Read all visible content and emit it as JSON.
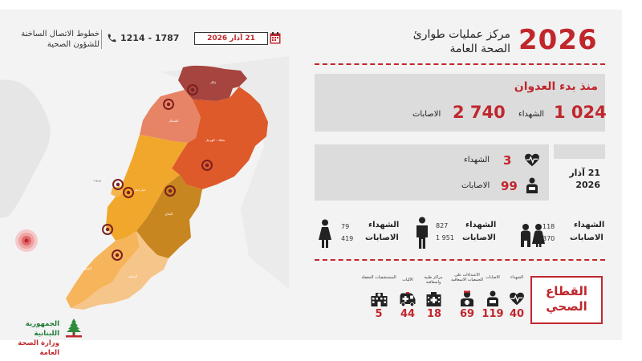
{
  "header": {
    "hotline_title": "خطوط الاتصال الساخنة",
    "hotline_subtitle": "للشؤون الصحية",
    "hotline_number": "1214 - 1787",
    "date": "21 آذار 2026",
    "year": "2026",
    "center_line1": "مركز عمليات طوارئ",
    "center_line2": "الصحة العامة"
  },
  "since_start": {
    "title": "منذ بدء العدوان",
    "martyrs_value": "1 024",
    "martyrs_label": "الشهداء",
    "injured_value": "2 740",
    "injured_label": "الاصابات"
  },
  "today": {
    "date_line1": "21 آذار",
    "date_line2": "2026",
    "martyrs_value": "3",
    "martyrs_label": "الشهداء",
    "injured_value": "99",
    "injured_label": "الاصابات"
  },
  "demographics": {
    "children": {
      "martyrs_label": "الشهداء",
      "injured_label": "الاصابات",
      "martyrs": "118",
      "injured": "370"
    },
    "men": {
      "martyrs_label": "الشهداء",
      "injured_label": "الاصابات",
      "martyrs": "827",
      "injured": "1 951"
    },
    "women": {
      "martyrs_label": "الشهداء",
      "injured_label": "الاصابات",
      "martyrs": "79",
      "injured": "419"
    }
  },
  "health_sector": {
    "title_line1": "القطاع",
    "title_line2": "الصحي",
    "stats": [
      {
        "label": "الشهداء",
        "value": "40",
        "icon": "heart-icon"
      },
      {
        "label": "الاصابات",
        "value": "119",
        "icon": "injured-person-icon"
      },
      {
        "label": "الاعتداءات على الجمعيات الاسعافية",
        "value": "69",
        "icon": "paramedic-icon"
      },
      {
        "label": "مراكز طبية واسعافية",
        "value": "18",
        "icon": "medical-center-icon"
      },
      {
        "label": "الآليات",
        "value": "44",
        "icon": "ambulance-icon"
      },
      {
        "label": "المستشفيات المقفلة",
        "value": "5",
        "icon": "hospital-icon"
      }
    ]
  },
  "map": {
    "districts": [
      "عكار",
      "الشمال",
      "بعلبك - الهرمل",
      "بيروت",
      "جبل لبنان",
      "البقاع",
      "الجنوب",
      "النبطية"
    ]
  },
  "footer": {
    "republic": "الجمهورية اللبنانية",
    "ministry": "وزارة الصحة العامة"
  },
  "colors": {
    "accent": "#c0272d",
    "akkar": "#a6453f",
    "north": "#e88466",
    "baalbek": "#de5a2a",
    "mount_lebanon": "#f0a72c",
    "bekaa": "#c7861f",
    "south": "#f7b55b",
    "nabatieh": "#f6c58a",
    "beirut": "#f4b64c"
  }
}
